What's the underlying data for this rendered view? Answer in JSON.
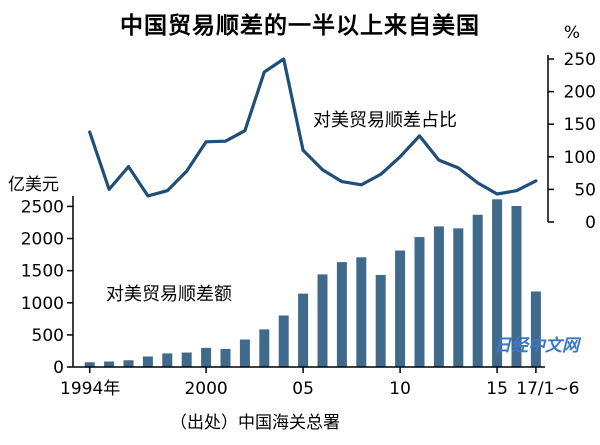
{
  "title": "中国贸易顺差的一半以上来自美国",
  "source": "（出处）中国海关总署",
  "watermark": "日经中文网",
  "colors": {
    "bar": "#3f6a8c",
    "line": "#1f4e79",
    "axis": "#000000"
  },
  "chart_data": {
    "type": "bar+line",
    "categories": [
      "1994",
      "1995",
      "1996",
      "1997",
      "1998",
      "1999",
      "2000",
      "2001",
      "2002",
      "2003",
      "2004",
      "2005",
      "2006",
      "2007",
      "2008",
      "2009",
      "2010",
      "2011",
      "2012",
      "2013",
      "2014",
      "2015",
      "2016",
      "2017/1~6"
    ],
    "x_tick_labels": [
      {
        "index": 0,
        "label": "1994年"
      },
      {
        "index": 6,
        "label": "2000"
      },
      {
        "index": 11,
        "label": "05"
      },
      {
        "index": 16,
        "label": "10"
      },
      {
        "index": 21,
        "label": "15"
      },
      {
        "index": 23,
        "label": "17/1~6"
      }
    ],
    "left_axis": {
      "unit": "亿美元",
      "ylim": [
        0,
        2600
      ],
      "ticks": [
        0,
        500,
        1000,
        1500,
        2000,
        2500
      ]
    },
    "right_axis": {
      "unit": "%",
      "ylim": [
        0,
        250
      ],
      "ticks": [
        0,
        50,
        100,
        150,
        200,
        250
      ]
    },
    "series": [
      {
        "name": "对美贸易顺差额",
        "type": "bar",
        "axis": "left",
        "values": [
          74,
          86,
          105,
          164,
          211,
          225,
          298,
          281,
          428,
          586,
          802,
          1142,
          1442,
          1633,
          1708,
          1433,
          1813,
          2023,
          2189,
          2159,
          2370,
          2611,
          2507,
          1176
        ]
      },
      {
        "name": "对美贸易顺差占比",
        "type": "line",
        "axis": "right",
        "values": [
          138,
          50,
          85,
          40,
          48,
          78,
          123,
          124,
          140,
          230,
          250,
          110,
          80,
          62,
          57,
          73,
          100,
          132,
          95,
          83,
          60,
          43,
          48,
          63
        ]
      }
    ]
  }
}
